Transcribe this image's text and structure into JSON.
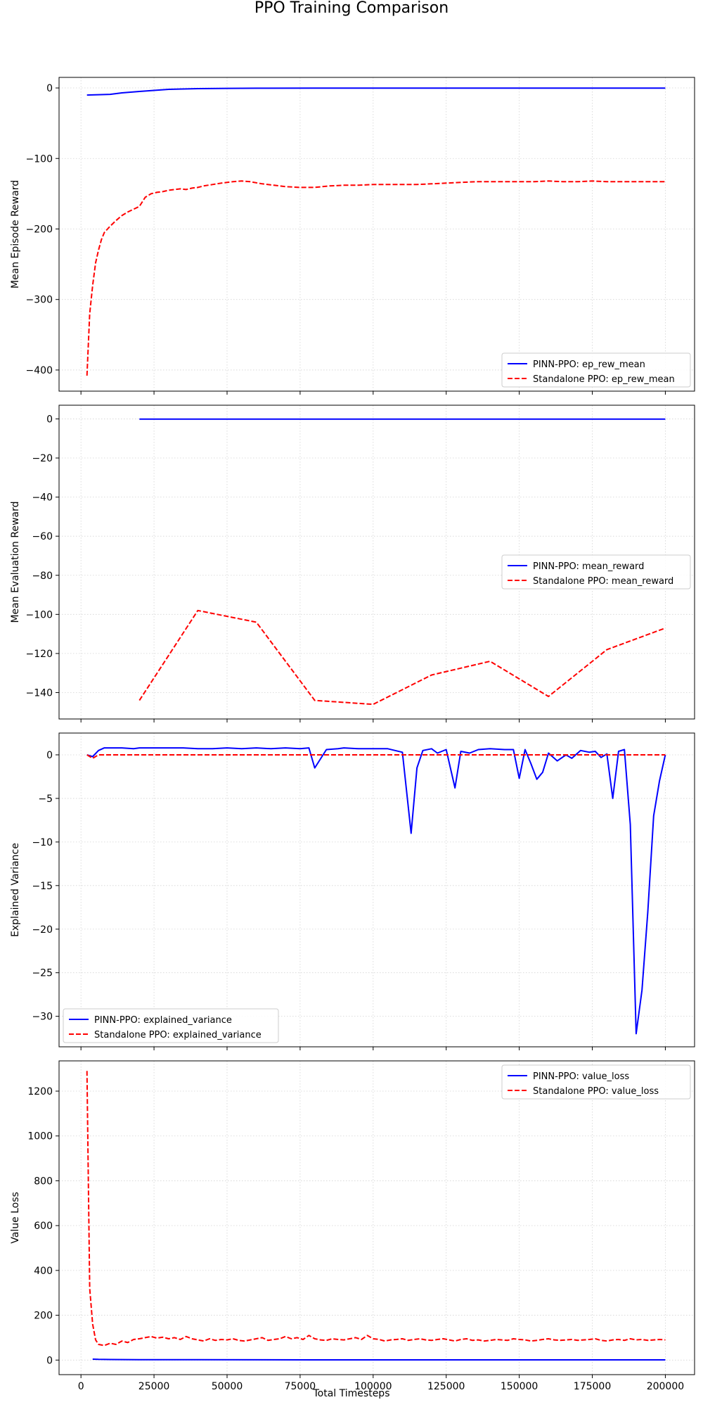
{
  "figure": {
    "title": "PPO Training Comparison",
    "xlabel": "Total Timesteps",
    "x_ticks": [
      0,
      25000,
      50000,
      75000,
      100000,
      125000,
      150000,
      175000,
      200000
    ],
    "xlim": [
      -7500,
      210000
    ]
  },
  "colors": {
    "pinn": "#0000ff",
    "ppo": "#ff0000",
    "grid": "#d3d3d3"
  },
  "chart_data": [
    {
      "type": "line",
      "ylabel": "Mean Episode Reward",
      "ylim": [
        -430,
        15
      ],
      "y_ticks": [
        0,
        -100,
        -200,
        -300,
        -400
      ],
      "grid": true,
      "legend_position": "lower-right",
      "series": [
        {
          "name": "PINN-PPO: ep_rew_mean",
          "style": "solid",
          "x": [
            2048,
            6000,
            10000,
            14000,
            20000,
            25000,
            30000,
            35000,
            40000,
            50000,
            60000,
            80000,
            100000,
            150000,
            200000
          ],
          "y": [
            -10,
            -9.5,
            -9,
            -7,
            -5,
            -3.5,
            -2,
            -1.5,
            -1,
            -0.6,
            -0.4,
            -0.3,
            -0.2,
            -0.2,
            -0.2
          ]
        },
        {
          "name": "Standalone PPO: ep_rew_mean",
          "style": "dashed",
          "x": [
            2048,
            3000,
            4000,
            5000,
            6000,
            7000,
            8000,
            10000,
            12000,
            14000,
            16000,
            18000,
            20000,
            22000,
            24000,
            26000,
            28000,
            30000,
            32000,
            34000,
            36000,
            38000,
            40000,
            42000,
            45000,
            48000,
            52000,
            55000,
            58000,
            62000,
            66000,
            70000,
            75000,
            80000,
            85000,
            90000,
            95000,
            100000,
            105000,
            110000,
            115000,
            120000,
            125000,
            130000,
            135000,
            140000,
            145000,
            150000,
            155000,
            160000,
            165000,
            170000,
            175000,
            180000,
            185000,
            190000,
            195000,
            200000
          ],
          "y": [
            -408,
            -320,
            -280,
            -248,
            -230,
            -215,
            -205,
            -196,
            -188,
            -181,
            -176,
            -172,
            -168,
            -155,
            -150,
            -148,
            -147,
            -145,
            -144,
            -143,
            -144,
            -142,
            -141,
            -139,
            -137,
            -135,
            -133,
            -132,
            -133,
            -136,
            -138,
            -140,
            -141,
            -141,
            -139,
            -138,
            -138,
            -137,
            -137,
            -137,
            -137,
            -136,
            -135,
            -134,
            -133,
            -133,
            -133,
            -133,
            -133,
            -132,
            -133,
            -133,
            -132,
            -133,
            -133,
            -133,
            -133,
            -133
          ]
        }
      ]
    },
    {
      "type": "line",
      "ylabel": "Mean Evaluation Reward",
      "ylim": [
        -153.5,
        7
      ],
      "y_ticks": [
        0,
        -20,
        -40,
        -60,
        -80,
        -100,
        -120,
        -140
      ],
      "grid": true,
      "legend_position": "center-right",
      "series": [
        {
          "name": "PINN-PPO: mean_reward",
          "style": "solid",
          "x": [
            20000,
            40000,
            60000,
            80000,
            100000,
            120000,
            140000,
            160000,
            180000,
            200000
          ],
          "y": [
            -0.1,
            -0.1,
            -0.1,
            -0.1,
            -0.1,
            -0.1,
            -0.1,
            -0.1,
            -0.1,
            -0.1
          ]
        },
        {
          "name": "Standalone PPO: mean_reward",
          "style": "dashed",
          "x": [
            20000,
            40000,
            60000,
            80000,
            100000,
            120000,
            140000,
            160000,
            180000,
            200000
          ],
          "y": [
            -144,
            -98,
            -104,
            -144,
            -146,
            -131,
            -124,
            -142,
            -118,
            -107
          ]
        }
      ]
    },
    {
      "type": "line",
      "ylabel": "Explained Variance",
      "ylim": [
        -33.5,
        2.5
      ],
      "y_ticks": [
        0,
        -5,
        -10,
        -15,
        -20,
        -25,
        -30
      ],
      "grid": true,
      "legend_position": "lower-left",
      "series": [
        {
          "name": "PINN-PPO: explained_variance",
          "style": "solid",
          "x": [
            2048,
            4000,
            6000,
            8000,
            10000,
            14000,
            18000,
            20000,
            25000,
            30000,
            35000,
            40000,
            45000,
            50000,
            55000,
            60000,
            65000,
            70000,
            75000,
            78000,
            80000,
            84000,
            88000,
            90000,
            95000,
            100000,
            105000,
            110000,
            113000,
            115000,
            117000,
            120000,
            122000,
            125000,
            128000,
            130000,
            133000,
            136000,
            140000,
            145000,
            148000,
            150000,
            152000,
            154000,
            156000,
            158000,
            160000,
            163000,
            166000,
            168000,
            171000,
            174000,
            176000,
            178000,
            180000,
            182000,
            184000,
            186000,
            188000,
            190000,
            192000,
            194000,
            196000,
            198000,
            200000
          ],
          "y": [
            0,
            -0.2,
            0.5,
            0.8,
            0.8,
            0.8,
            0.7,
            0.8,
            0.8,
            0.8,
            0.8,
            0.7,
            0.7,
            0.8,
            0.7,
            0.8,
            0.7,
            0.8,
            0.7,
            0.8,
            -1.5,
            0.6,
            0.7,
            0.8,
            0.7,
            0.7,
            0.7,
            0.3,
            -9,
            -1.5,
            0.5,
            0.7,
            0.2,
            0.6,
            -3.8,
            0.4,
            0.2,
            0.6,
            0.7,
            0.6,
            0.6,
            -2.7,
            0.6,
            -1,
            -2.8,
            -2,
            0.2,
            -0.7,
            0,
            -0.4,
            0.5,
            0.3,
            0.4,
            -0.3,
            0.1,
            -5,
            0.4,
            0.6,
            -8,
            -32,
            -27,
            -18,
            -7,
            -3,
            0
          ]
        },
        {
          "name": "Standalone PPO: explained_variance",
          "style": "dashed",
          "x": [
            2048,
            4000,
            6000,
            10000,
            20000,
            50000,
            100000,
            150000,
            200000
          ],
          "y": [
            0,
            -0.4,
            0,
            0,
            0,
            0,
            0,
            0,
            0
          ]
        }
      ]
    },
    {
      "type": "line",
      "ylabel": "Value Loss",
      "ylim": [
        -65,
        1335
      ],
      "y_ticks": [
        0,
        200,
        400,
        600,
        800,
        1000,
        1200
      ],
      "grid": true,
      "legend_position": "top-right",
      "series": [
        {
          "name": "PINN-PPO: value_loss",
          "style": "solid",
          "x": [
            4000,
            6000,
            10000,
            20000,
            40000,
            80000,
            120000,
            160000,
            200000
          ],
          "y": [
            4,
            3,
            2.5,
            2,
            1.5,
            1,
            1,
            1,
            1
          ]
        },
        {
          "name": "Standalone PPO: value_loss",
          "style": "dashed",
          "x": [
            2048,
            3000,
            4000,
            5000,
            6000,
            8000,
            10000,
            12000,
            14000,
            16000,
            18000,
            20000,
            22000,
            24000,
            26000,
            28000,
            30000,
            32000,
            34000,
            36000,
            38000,
            40000,
            42000,
            44000,
            46000,
            48000,
            50000,
            52000,
            54000,
            56000,
            58000,
            60000,
            62000,
            64000,
            66000,
            68000,
            70000,
            72000,
            74000,
            76000,
            78000,
            80000,
            82000,
            84000,
            86000,
            88000,
            90000,
            92000,
            94000,
            96000,
            98000,
            100000,
            102000,
            104000,
            106000,
            108000,
            110000,
            112000,
            114000,
            116000,
            118000,
            120000,
            122000,
            124000,
            126000,
            128000,
            130000,
            132000,
            134000,
            136000,
            138000,
            140000,
            142000,
            144000,
            146000,
            148000,
            150000,
            152000,
            154000,
            156000,
            158000,
            160000,
            162000,
            164000,
            166000,
            168000,
            170000,
            172000,
            174000,
            176000,
            178000,
            180000,
            182000,
            184000,
            186000,
            188000,
            190000,
            192000,
            194000,
            196000,
            198000,
            200000
          ],
          "y": [
            1290,
            320,
            160,
            90,
            70,
            65,
            75,
            70,
            85,
            78,
            92,
            95,
            100,
            105,
            98,
            102,
            95,
            100,
            92,
            105,
            95,
            90,
            85,
            95,
            88,
            92,
            90,
            95,
            88,
            85,
            90,
            95,
            100,
            88,
            92,
            95,
            105,
            95,
            100,
            92,
            110,
            95,
            90,
            88,
            95,
            92,
            90,
            95,
            100,
            92,
            110,
            95,
            92,
            85,
            90,
            92,
            95,
            88,
            92,
            95,
            90,
            88,
            92,
            95,
            90,
            85,
            92,
            95,
            88,
            90,
            85,
            88,
            92,
            90,
            88,
            95,
            92,
            90,
            85,
            88,
            92,
            95,
            90,
            88,
            90,
            92,
            88,
            90,
            92,
            95,
            88,
            85,
            90,
            92,
            88,
            95,
            90,
            92,
            88,
            90,
            92,
            90
          ]
        }
      ]
    }
  ]
}
